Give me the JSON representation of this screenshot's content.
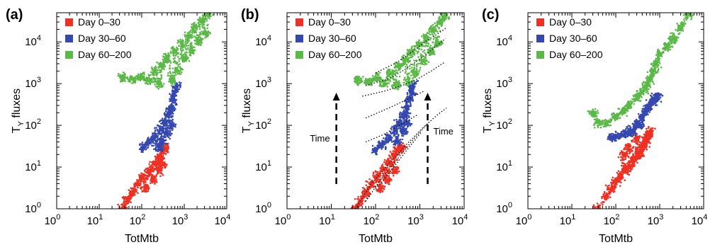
{
  "chart_data": [
    {
      "panel": "(a)",
      "type": "scatter",
      "xlabel": "TotMtb",
      "ylabel": "T",
      "ylabel_sub": "Y",
      "ylabel_rest": " fluxes",
      "x_scale": "log",
      "y_scale": "log",
      "xlim": [
        1,
        10000
      ],
      "ylim": [
        1,
        50000
      ],
      "x_ticks": [
        {
          "value": 1,
          "base": "10",
          "exp": "0"
        },
        {
          "value": 10,
          "base": "10",
          "exp": "1"
        },
        {
          "value": 100,
          "base": "10",
          "exp": "2"
        },
        {
          "value": 1000,
          "base": "10",
          "exp": "3"
        },
        {
          "value": 10000,
          "base": "10",
          "exp": "4"
        }
      ],
      "y_ticks": [
        {
          "value": 1,
          "base": "10",
          "exp": "0"
        },
        {
          "value": 10,
          "base": "10",
          "exp": "1"
        },
        {
          "value": 100,
          "base": "10",
          "exp": "2"
        },
        {
          "value": 1000,
          "base": "10",
          "exp": "3"
        },
        {
          "value": 10000,
          "base": "10",
          "exp": "4"
        }
      ],
      "grid": false,
      "legend_position": "top-left",
      "series": [
        {
          "name": "Day 0–30",
          "color": "#ee3124",
          "points": [
            [
              35,
              1
            ],
            [
              45,
              1.6
            ],
            [
              60,
              2.5
            ],
            [
              80,
              4
            ],
            [
              110,
              6
            ],
            [
              150,
              8
            ],
            [
              200,
              12
            ],
            [
              260,
              18
            ],
            [
              320,
              25
            ],
            [
              350,
              30
            ],
            [
              120,
              3
            ],
            [
              180,
              5
            ],
            [
              250,
              8
            ],
            [
              300,
              12
            ]
          ]
        },
        {
          "name": "Day 30–60",
          "color": "#3548b0",
          "points": [
            [
              110,
              30
            ],
            [
              150,
              40
            ],
            [
              200,
              55
            ],
            [
              280,
              80
            ],
            [
              350,
              120
            ],
            [
              420,
              180
            ],
            [
              480,
              250
            ],
            [
              550,
              400
            ],
            [
              600,
              600
            ],
            [
              650,
              900
            ],
            [
              300,
              40
            ],
            [
              400,
              60
            ],
            [
              500,
              100
            ],
            [
              250,
              30
            ]
          ]
        },
        {
          "name": "Day 60–200",
          "color": "#5ab947",
          "points": [
            [
              35,
              1400
            ],
            [
              60,
              1300
            ],
            [
              100,
              1500
            ],
            [
              150,
              1200
            ],
            [
              200,
              2000
            ],
            [
              300,
              2800
            ],
            [
              400,
              4000
            ],
            [
              600,
              6000
            ],
            [
              900,
              9000
            ],
            [
              1300,
              14000
            ],
            [
              1800,
              22000
            ],
            [
              2600,
              35000
            ],
            [
              3500,
              45000
            ],
            [
              250,
              1000
            ],
            [
              500,
              1200
            ],
            [
              700,
              2000
            ],
            [
              1000,
              4000
            ],
            [
              1500,
              6000
            ],
            [
              2200,
              10000
            ],
            [
              3200,
              16000
            ]
          ]
        }
      ]
    },
    {
      "panel": "(b)",
      "type": "scatter",
      "xlabel": "TotMtb",
      "ylabel": "T",
      "ylabel_sub": "Y",
      "ylabel_rest": " fluxes",
      "x_scale": "log",
      "y_scale": "log",
      "xlim": [
        1,
        10000
      ],
      "ylim": [
        1,
        50000
      ],
      "x_ticks": [
        {
          "value": 1,
          "base": "10",
          "exp": "0"
        },
        {
          "value": 10,
          "base": "10",
          "exp": "1"
        },
        {
          "value": 100,
          "base": "10",
          "exp": "2"
        },
        {
          "value": 1000,
          "base": "10",
          "exp": "3"
        },
        {
          "value": 10000,
          "base": "10",
          "exp": "4"
        }
      ],
      "y_ticks": [
        {
          "value": 1,
          "base": "10",
          "exp": "0"
        },
        {
          "value": 10,
          "base": "10",
          "exp": "1"
        },
        {
          "value": 100,
          "base": "10",
          "exp": "2"
        },
        {
          "value": 1000,
          "base": "10",
          "exp": "3"
        },
        {
          "value": 10000,
          "base": "10",
          "exp": "4"
        }
      ],
      "grid": false,
      "legend_position": "top-left",
      "series": [
        {
          "name": "Day 0–30",
          "color": "#ee3124",
          "points": [
            [
              35,
              1
            ],
            [
              45,
              1.5
            ],
            [
              60,
              2.4
            ],
            [
              80,
              3.8
            ],
            [
              110,
              6
            ],
            [
              150,
              9
            ],
            [
              200,
              13
            ],
            [
              260,
              19
            ],
            [
              330,
              26
            ],
            [
              380,
              30
            ],
            [
              130,
              3
            ],
            [
              190,
              5
            ],
            [
              260,
              8
            ]
          ]
        },
        {
          "name": "Day 30–60",
          "color": "#3548b0",
          "points": [
            [
              100,
              25
            ],
            [
              140,
              35
            ],
            [
              200,
              50
            ],
            [
              280,
              80
            ],
            [
              350,
              120
            ],
            [
              430,
              180
            ],
            [
              500,
              260
            ],
            [
              580,
              400
            ],
            [
              650,
              600
            ],
            [
              700,
              900
            ],
            [
              300,
              40
            ],
            [
              420,
              70
            ],
            [
              520,
              110
            ]
          ]
        },
        {
          "name": "Day 60–200",
          "color": "#5ab947",
          "points": [
            [
              40,
              1200
            ],
            [
              70,
              1100
            ],
            [
              110,
              1400
            ],
            [
              160,
              1000
            ],
            [
              220,
              1800
            ],
            [
              320,
              2600
            ],
            [
              450,
              3800
            ],
            [
              650,
              5800
            ],
            [
              950,
              8800
            ],
            [
              1400,
              13000
            ],
            [
              2000,
              20000
            ],
            [
              2800,
              30000
            ],
            [
              3600,
              42000
            ],
            [
              300,
              900
            ],
            [
              550,
              1100
            ],
            [
              800,
              1800
            ],
            [
              1200,
              3500
            ],
            [
              1800,
              5500
            ],
            [
              2600,
              9000
            ]
          ]
        }
      ],
      "trajectories": [
        [
          [
            35,
            1
          ],
          [
            80,
            4
          ],
          [
            200,
            12
          ],
          [
            500,
            35
          ],
          [
            1200,
            90
          ],
          [
            2500,
            180
          ],
          [
            4000,
            260
          ]
        ],
        [
          [
            60,
            1.5
          ],
          [
            130,
            5
          ],
          [
            300,
            15
          ],
          [
            700,
            45
          ],
          [
            1500,
            110
          ]
        ],
        [
          [
            100,
            3
          ],
          [
            220,
            8
          ],
          [
            500,
            25
          ],
          [
            1100,
            70
          ]
        ],
        [
          [
            60,
            40
          ],
          [
            150,
            60
          ],
          [
            400,
            110
          ],
          [
            900,
            180
          ]
        ],
        [
          [
            60,
            150
          ],
          [
            200,
            260
          ],
          [
            600,
            450
          ],
          [
            1200,
            650
          ]
        ],
        [
          [
            50,
            500
          ],
          [
            150,
            650
          ],
          [
            400,
            900
          ],
          [
            900,
            1300
          ],
          [
            1800,
            2000
          ],
          [
            3500,
            3200
          ]
        ],
        [
          [
            60,
            900
          ],
          [
            200,
            1300
          ],
          [
            500,
            2300
          ],
          [
            1100,
            4200
          ],
          [
            2200,
            7500
          ],
          [
            3800,
            12000
          ]
        ],
        [
          [
            100,
            1800
          ],
          [
            300,
            3200
          ],
          [
            700,
            6000
          ],
          [
            1400,
            10500
          ],
          [
            2600,
            16000
          ],
          [
            4000,
            22000
          ]
        ]
      ],
      "annotations": [
        {
          "text": "Time",
          "side": "left"
        },
        {
          "text": "Time",
          "side": "right"
        }
      ]
    },
    {
      "panel": "(c)",
      "type": "scatter",
      "xlabel": "TotMtb",
      "ylabel": "T",
      "ylabel_sub": "Y",
      "ylabel_rest": " fluxes",
      "x_scale": "log",
      "y_scale": "log",
      "xlim": [
        1,
        10000
      ],
      "ylim": [
        1,
        50000
      ],
      "x_ticks": [
        {
          "value": 1,
          "base": "10",
          "exp": "0"
        },
        {
          "value": 10,
          "base": "10",
          "exp": "1"
        },
        {
          "value": 100,
          "base": "10",
          "exp": "2"
        },
        {
          "value": 1000,
          "base": "10",
          "exp": "3"
        },
        {
          "value": 10000,
          "base": "10",
          "exp": "4"
        }
      ],
      "y_ticks": [
        {
          "value": 1,
          "base": "10",
          "exp": "0"
        },
        {
          "value": 10,
          "base": "10",
          "exp": "1"
        },
        {
          "value": 100,
          "base": "10",
          "exp": "2"
        },
        {
          "value": 1000,
          "base": "10",
          "exp": "3"
        },
        {
          "value": 10000,
          "base": "10",
          "exp": "4"
        }
      ],
      "grid": false,
      "legend_position": "top-left",
      "series": [
        {
          "name": "Day 0–30",
          "color": "#ee3124",
          "points": [
            [
              40,
              1
            ],
            [
              60,
              2
            ],
            [
              80,
              3
            ],
            [
              100,
              4.5
            ],
            [
              130,
              6
            ],
            [
              160,
              8
            ],
            [
              200,
              10
            ],
            [
              250,
              14
            ],
            [
              300,
              18
            ],
            [
              350,
              22
            ],
            [
              400,
              28
            ],
            [
              450,
              35
            ],
            [
              500,
              45
            ],
            [
              550,
              60
            ],
            [
              600,
              70
            ],
            [
              300,
              50
            ],
            [
              200,
              30
            ],
            [
              150,
              20
            ]
          ]
        },
        {
          "name": "Day 30–60",
          "color": "#3548b0",
          "points": [
            [
              80,
              50
            ],
            [
              100,
              55
            ],
            [
              150,
              60
            ],
            [
              200,
              75
            ],
            [
              300,
              110
            ],
            [
              400,
              160
            ],
            [
              500,
              230
            ],
            [
              600,
              300
            ],
            [
              700,
              380
            ],
            [
              800,
              450
            ],
            [
              900,
              500
            ],
            [
              250,
              70
            ],
            [
              350,
              100
            ]
          ]
        },
        {
          "name": "Day 60–200",
          "color": "#5ab947",
          "points": [
            [
              30,
              200
            ],
            [
              40,
              120
            ],
            [
              60,
              110
            ],
            [
              100,
              160
            ],
            [
              150,
              220
            ],
            [
              200,
              300
            ],
            [
              300,
              450
            ],
            [
              400,
              650
            ],
            [
              500,
              900
            ],
            [
              600,
              1300
            ],
            [
              700,
              2000
            ],
            [
              800,
              3000
            ],
            [
              1000,
              5000
            ],
            [
              1500,
              8000
            ],
            [
              2000,
              12000
            ],
            [
              3000,
              22000
            ],
            [
              4500,
              45000
            ]
          ]
        }
      ]
    }
  ]
}
